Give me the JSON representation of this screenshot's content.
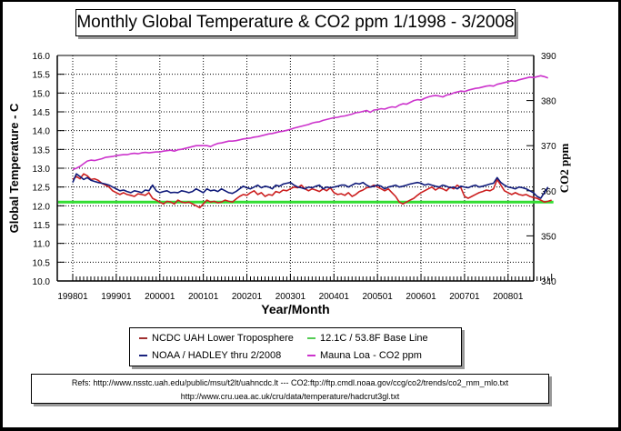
{
  "chart_data": {
    "type": "line",
    "title": "Monthly Global Temperature & CO2 ppm 1/1998 - 3/2008",
    "xlabel": "Year/Month",
    "ylabel": "Global Temperature - C",
    "y2label": "CO2 ppm",
    "ylim": [
      10.0,
      16.0
    ],
    "y2lim": [
      340,
      390
    ],
    "yticks": [
      "16.0",
      "15.5",
      "15.0",
      "14.5",
      "14.0",
      "13.5",
      "13.0",
      "12.5",
      "12.0",
      "11.5",
      "11.0",
      "10.5",
      "10.0"
    ],
    "y2ticks": [
      "390",
      "380",
      "370",
      "360",
      "350",
      "340"
    ],
    "xticks": [
      "199801",
      "199901",
      "200001",
      "200101",
      "200201",
      "200301",
      "200401",
      "200501",
      "200601",
      "200701",
      "200801"
    ],
    "x_start": "1998-01",
    "x_end": "2008-03",
    "grid": true,
    "legend_position": "bottom-center",
    "series": [
      {
        "name": "NCDC UAH Lower Troposphere",
        "axis": "left",
        "color": "#cc1f1f",
        "values": [
          12.7,
          12.78,
          12.72,
          12.85,
          12.8,
          12.7,
          12.72,
          12.68,
          12.6,
          12.55,
          12.5,
          12.4,
          12.35,
          12.3,
          12.35,
          12.3,
          12.28,
          12.25,
          12.32,
          12.3,
          12.28,
          12.35,
          12.2,
          12.15,
          12.1,
          12.05,
          12.12,
          12.1,
          12.05,
          12.15,
          12.1,
          12.08,
          12.1,
          12.05,
          12.0,
          11.95,
          12.05,
          12.15,
          12.1,
          12.12,
          12.08,
          12.1,
          12.15,
          12.12,
          12.1,
          12.18,
          12.25,
          12.3,
          12.28,
          12.35,
          12.4,
          12.3,
          12.35,
          12.25,
          12.3,
          12.28,
          12.38,
          12.35,
          12.42,
          12.4,
          12.45,
          12.5,
          12.48,
          12.55,
          12.45,
          12.4,
          12.45,
          12.42,
          12.38,
          12.45,
          12.4,
          12.48,
          12.35,
          12.3,
          12.32,
          12.28,
          12.35,
          12.25,
          12.3,
          12.38,
          12.42,
          12.48,
          12.5,
          12.55,
          12.5,
          12.45,
          12.4,
          12.45,
          12.35,
          12.25,
          12.1,
          12.05,
          12.1,
          12.15,
          12.2,
          12.28,
          12.35,
          12.4,
          12.45,
          12.5,
          12.42,
          12.48,
          12.45,
          12.4,
          12.5,
          12.45,
          12.55,
          12.48,
          12.25,
          12.2,
          12.25,
          12.3,
          12.35,
          12.38,
          12.42,
          12.4,
          12.45,
          12.7,
          12.55,
          12.4,
          12.35,
          12.3,
          12.35,
          12.3,
          12.28,
          12.3,
          12.25,
          12.22,
          12.2,
          12.15,
          12.1,
          12.12,
          12.15
        ]
      },
      {
        "name": "NOAA / HADLEY thru 2/2008",
        "axis": "left",
        "color": "#0f1a7a",
        "values": [
          12.62,
          12.85,
          12.78,
          12.7,
          12.75,
          12.68,
          12.65,
          12.62,
          12.6,
          12.58,
          12.55,
          12.5,
          12.45,
          12.4,
          12.42,
          12.38,
          12.35,
          12.4,
          12.38,
          12.35,
          12.42,
          12.4,
          12.55,
          12.4,
          12.35,
          12.38,
          12.4,
          12.35,
          12.36,
          12.35,
          12.4,
          12.38,
          12.35,
          12.38,
          12.45,
          12.4,
          12.35,
          12.45,
          12.4,
          12.42,
          12.38,
          12.45,
          12.4,
          12.35,
          12.33,
          12.38,
          12.45,
          12.52,
          12.48,
          12.45,
          12.5,
          12.55,
          12.48,
          12.52,
          12.5,
          12.45,
          12.55,
          12.52,
          12.58,
          12.6,
          12.62,
          12.55,
          12.5,
          12.48,
          12.45,
          12.5,
          12.48,
          12.52,
          12.55,
          12.45,
          12.5,
          12.48,
          12.5,
          12.52,
          12.55,
          12.55,
          12.5,
          12.55,
          12.6,
          12.58,
          12.62,
          12.55,
          12.5,
          12.52,
          12.55,
          12.52,
          12.45,
          12.5,
          12.52,
          12.55,
          12.5,
          12.52,
          12.55,
          12.58,
          12.6,
          12.62,
          12.6,
          12.55,
          12.58,
          12.55,
          12.52,
          12.5,
          12.55,
          12.52,
          12.48,
          12.5,
          12.45,
          12.52,
          12.5,
          12.48,
          12.52,
          12.55,
          12.5,
          12.52,
          12.55,
          12.58,
          12.6,
          12.75,
          12.62,
          12.55,
          12.5,
          12.48,
          12.45,
          12.5,
          12.48,
          12.45,
          12.4,
          12.35,
          12.25,
          12.2,
          12.35,
          12.5,
          null
        ]
      },
      {
        "name": "12.1C / 53.8F Base Line",
        "axis": "left",
        "color": "#33dd33",
        "constant": 12.1
      },
      {
        "name": "Mauna Loa - CO2 ppm",
        "axis": "right",
        "color": "#cc33cc",
        "values": [
          364.7,
          365.0,
          365.4,
          366.0,
          366.6,
          366.8,
          366.7,
          366.9,
          367.1,
          367.4,
          367.5,
          367.6,
          367.8,
          367.9,
          368.0,
          368.0,
          368.2,
          368.3,
          368.2,
          368.4,
          368.5,
          368.4,
          368.5,
          368.6,
          368.6,
          368.8,
          368.9,
          369.0,
          368.8,
          369.1,
          369.2,
          369.4,
          369.6,
          369.8,
          370.0,
          370.0,
          370.0,
          370.0,
          369.8,
          370.2,
          370.5,
          370.6,
          370.8,
          371.0,
          371.0,
          371.1,
          371.3,
          371.5,
          371.6,
          371.7,
          371.9,
          372.0,
          372.2,
          372.4,
          372.6,
          372.7,
          372.9,
          373.1,
          373.2,
          373.4,
          373.6,
          373.9,
          374.1,
          374.3,
          374.5,
          374.7,
          375.0,
          375.2,
          375.3,
          375.6,
          375.8,
          376.0,
          376.2,
          376.3,
          376.5,
          376.6,
          376.8,
          377.0,
          377.3,
          377.4,
          377.6,
          377.8,
          377.4,
          377.9,
          378.0,
          378.2,
          378.1,
          378.4,
          378.6,
          378.5,
          379.0,
          379.3,
          379.2,
          379.6,
          380.0,
          380.2,
          380.1,
          380.5,
          380.8,
          381.0,
          381.1,
          381.0,
          380.8,
          381.2,
          381.4,
          381.7,
          381.9,
          382.1,
          382.0,
          382.3,
          382.5,
          382.7,
          382.8,
          383.0,
          383.2,
          383.3,
          383.2,
          383.6,
          383.8,
          384.0,
          384.2,
          384.4,
          384.3,
          384.6,
          384.8,
          385.0,
          385.2,
          385.1,
          385.3,
          385.5,
          385.3,
          385.0
        ]
      }
    ]
  },
  "legend": {
    "items": [
      {
        "label": "NCDC UAH Lower Troposphere",
        "color": "#cc1f1f"
      },
      {
        "label": "12.1C / 53.8F Base Line",
        "color": "#33dd33"
      },
      {
        "label": "NOAA / HADLEY thru 2/2008",
        "color": "#0f1a7a"
      },
      {
        "label": "Mauna Loa - CO2 ppm",
        "color": "#cc33cc"
      }
    ]
  },
  "refs": {
    "line1": "Refs: http://www.nsstc.uah.edu/public/msu/t2lt/uahncdc.lt --- CO2:ftp://ftp.cmdl.noaa.gov/ccg/co2/trends/co2_mm_mlo.txt",
    "line2": "http://www.cru.uea.ac.uk/cru/data/temperature/hadcrut3gl.txt"
  }
}
